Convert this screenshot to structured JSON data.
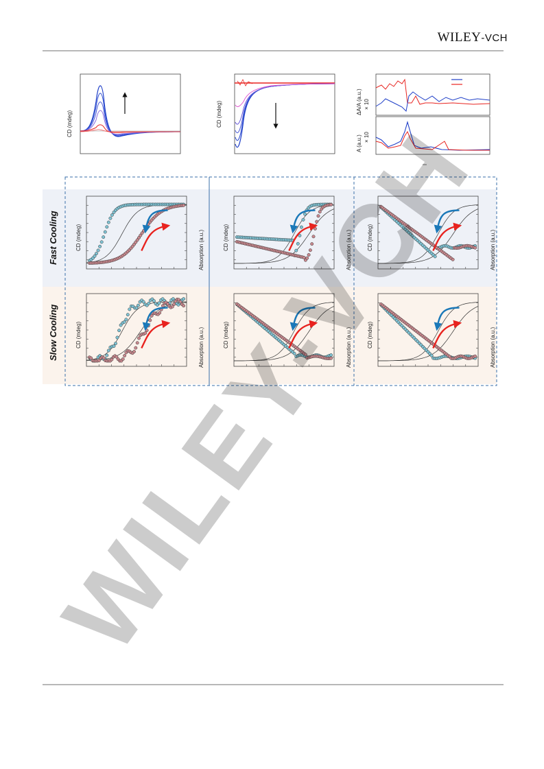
{
  "header": {
    "brand": "WILEY",
    "brand_suffix": "-VCH"
  },
  "watermark": {
    "text": "WILEY-VCH"
  },
  "top_panels": {
    "a": {
      "ylabel": "CD (mdeg)"
    },
    "b": {
      "ylabel": "CD (mdeg)"
    },
    "c": {
      "ylabel_top": "ΔA/A (a.u.)",
      "mult_top": "× 10",
      "ylabel_bottom": "A (a.u.)",
      "mult_bottom": "× 10",
      "legend_colors": [
        "#1f3fc8",
        "#e8231f"
      ]
    }
  },
  "grid": {
    "rows": [
      {
        "label": "Fast Cooling",
        "bg": "#eef1f7"
      },
      {
        "label": "Slow Cooling",
        "bg": "#fbf3ec"
      }
    ],
    "ylabel_left": "CD (mdeg)",
    "ylabel_right": "Absorption (a.u.)",
    "colors": {
      "cooling": "#1a78b8",
      "heating": "#e8231f",
      "cool_markers": "#7fc3d4",
      "heat_markers": "#c9888e"
    }
  }
}
